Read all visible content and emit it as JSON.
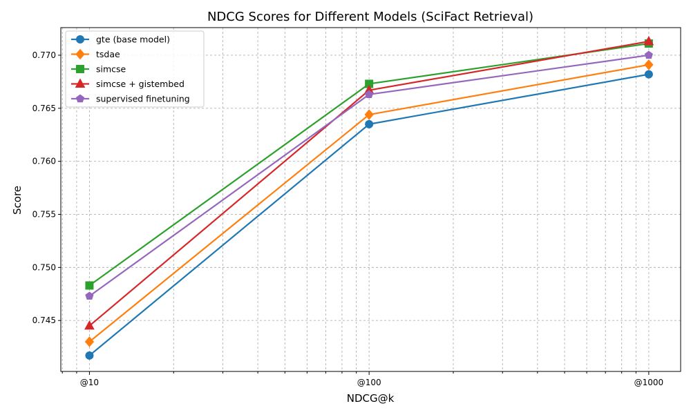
{
  "chart_data": {
    "type": "line",
    "title": "NDCG Scores for Different Models (SciFact Retrieval)",
    "xlabel": "NDCG@k",
    "ylabel": "Score",
    "x": [
      10,
      100,
      1000
    ],
    "x_scale": "log",
    "x_tick_labels": [
      "@10",
      "@100",
      "@1000"
    ],
    "y_ticks": [
      "0.745",
      "0.750",
      "0.755",
      "0.760",
      "0.765",
      "0.770"
    ],
    "ylim": [
      0.7402,
      0.7726
    ],
    "grid": true,
    "legend_position": "upper left",
    "series": [
      {
        "name": "gte (base model)",
        "color": "#1f77b4",
        "marker": "circle",
        "values": [
          0.7417,
          0.7635,
          0.7682
        ]
      },
      {
        "name": "tsdae",
        "color": "#ff7f0e",
        "marker": "diamond",
        "values": [
          0.743,
          0.7644,
          0.7691
        ]
      },
      {
        "name": "simcse",
        "color": "#2ca02c",
        "marker": "square",
        "values": [
          0.7483,
          0.7673,
          0.7711
        ]
      },
      {
        "name": "simcse + gistembed",
        "color": "#d62728",
        "marker": "triangle",
        "values": [
          0.7445,
          0.7667,
          0.7713
        ]
      },
      {
        "name": "supervised finetuning",
        "color": "#9467bd",
        "marker": "pentagon",
        "values": [
          0.7473,
          0.7663,
          0.77
        ]
      }
    ]
  }
}
